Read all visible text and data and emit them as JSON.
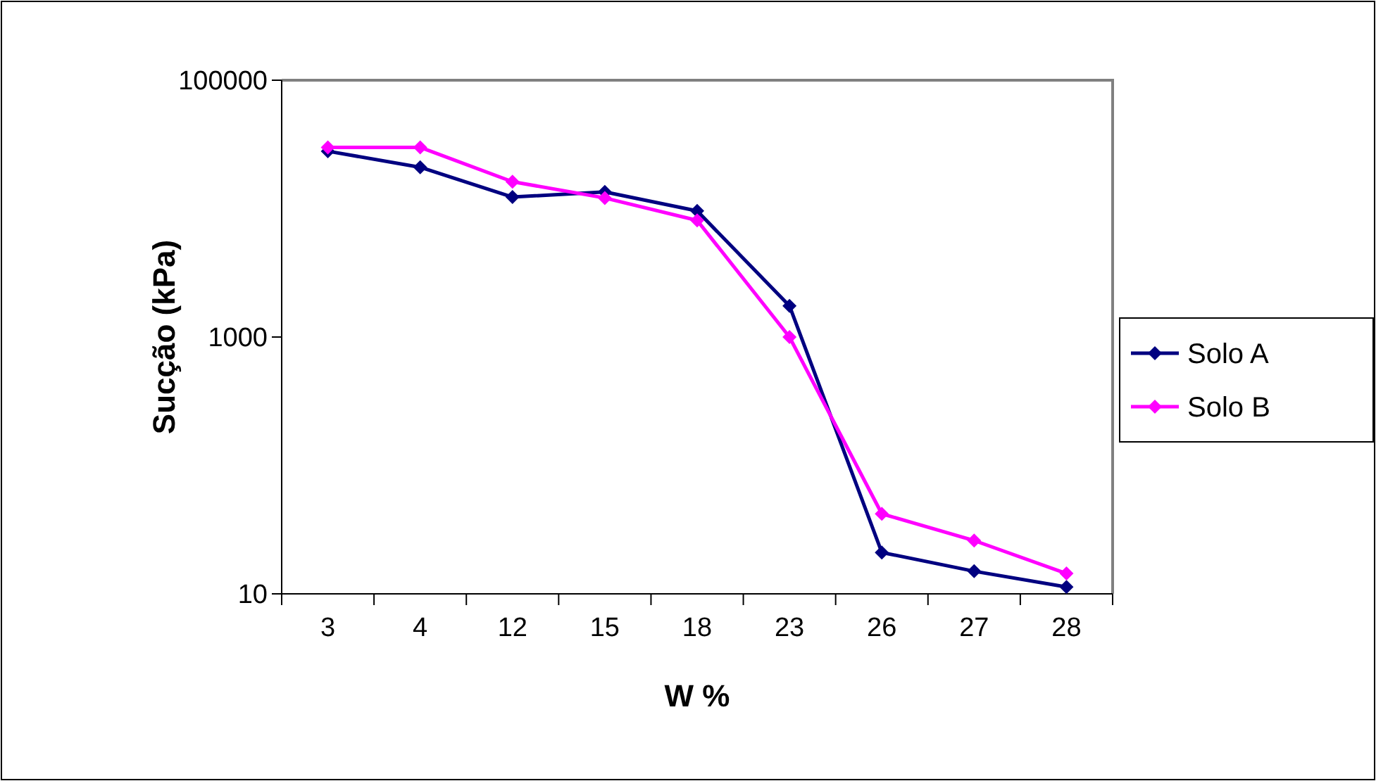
{
  "chart_data": {
    "type": "line",
    "xlabel": "W %",
    "ylabel": "Sucção (kPa)",
    "categories": [
      "3",
      "4",
      "12",
      "15",
      "18",
      "23",
      "26",
      "27",
      "28"
    ],
    "series": [
      {
        "name": "Solo A",
        "color": "#000080",
        "values": [
          28000,
          21000,
          12300,
          13500,
          9600,
          1750,
          21,
          15,
          11.3
        ]
      },
      {
        "name": "Solo B",
        "color": "#ff00ff",
        "values": [
          30000,
          30000,
          16200,
          12100,
          8100,
          1000,
          42,
          26,
          14.4
        ]
      }
    ],
    "log": true,
    "ylim": [
      10,
      100000
    ],
    "yticks": [
      10,
      1000,
      100000
    ],
    "grid": false,
    "legend": "right",
    "marker": "diamond",
    "line_style": "solid"
  }
}
